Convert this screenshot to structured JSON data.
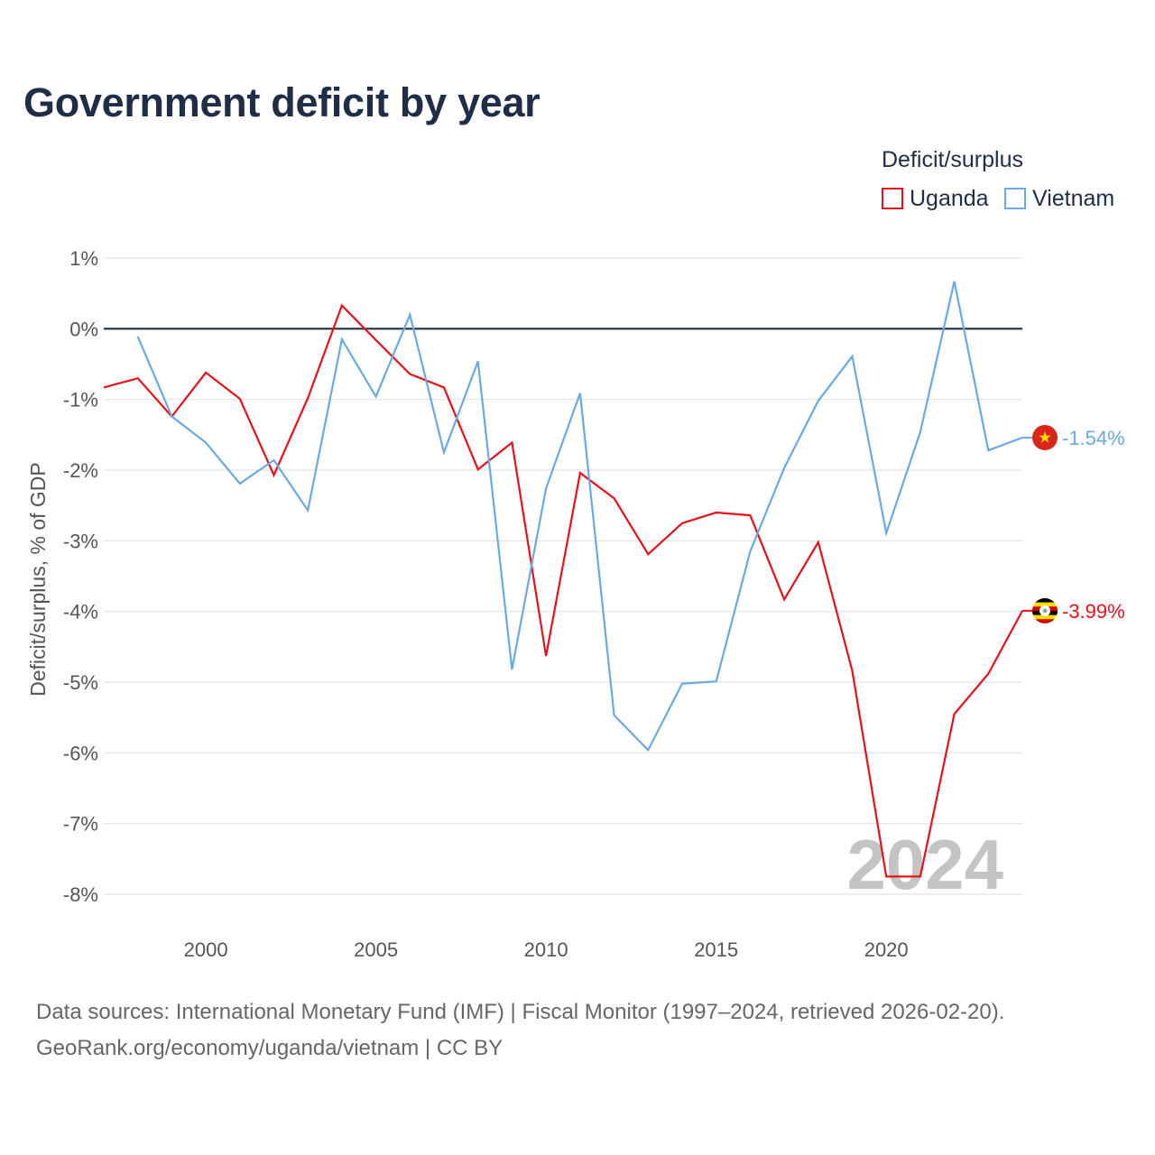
{
  "title": "Government deficit by year",
  "legend": {
    "title": "Deficit/surplus",
    "items": [
      {
        "label": "Uganda",
        "color": "#e8101a"
      },
      {
        "label": "Vietnam",
        "color": "#6aa9e3"
      }
    ]
  },
  "chart_data": {
    "type": "line",
    "title": "Government deficit by year",
    "ylabel": "Deficit/surplus, % of GDP",
    "xlabel": "",
    "xlim": [
      1997,
      2024
    ],
    "ylim": [
      -8,
      1
    ],
    "x_ticks": [
      2000,
      2005,
      2010,
      2015,
      2020
    ],
    "x_tick_labels": [
      "2000",
      "2005",
      "2010",
      "2015",
      "2020"
    ],
    "y_ticks": [
      1,
      0,
      -1,
      -2,
      -3,
      -4,
      -5,
      -6,
      -7,
      -8
    ],
    "y_tick_labels": [
      "1%",
      "0%",
      "-1%",
      "-2%",
      "-3%",
      "-4%",
      "-5%",
      "-6%",
      "-7%",
      "-8%"
    ],
    "grid": true,
    "zero_line": true,
    "watermark_year": "2024",
    "series": [
      {
        "name": "Uganda",
        "color": "#e8101a",
        "end_label": "-3.99%",
        "flag": "uganda-flag-icon",
        "x": [
          1997,
          1998,
          1999,
          2000,
          2001,
          2002,
          2003,
          2004,
          2005,
          2006,
          2007,
          2008,
          2009,
          2010,
          2011,
          2012,
          2013,
          2014,
          2015,
          2016,
          2017,
          2018,
          2019,
          2020,
          2021,
          2022,
          2023,
          2024
        ],
        "values": [
          -0.83,
          -0.7,
          -1.24,
          -0.62,
          -0.99,
          -2.07,
          -0.98,
          0.33,
          -0.16,
          -0.64,
          -0.83,
          -1.99,
          -1.61,
          -4.63,
          -2.04,
          -2.4,
          -3.19,
          -2.75,
          -2.6,
          -2.64,
          -3.83,
          -3.02,
          -4.84,
          -7.75,
          -7.75,
          -5.45,
          -4.88,
          -3.99
        ]
      },
      {
        "name": "Vietnam",
        "color": "#6aa9e3",
        "end_label": "-1.54%",
        "flag": "vietnam-flag-icon",
        "x": [
          1998,
          1999,
          2000,
          2001,
          2002,
          2003,
          2004,
          2005,
          2006,
          2007,
          2008,
          2009,
          2010,
          2011,
          2012,
          2013,
          2014,
          2015,
          2016,
          2017,
          2018,
          2019,
          2020,
          2021,
          2022,
          2023,
          2024
        ],
        "values": [
          -0.11,
          -1.24,
          -1.61,
          -2.19,
          -1.86,
          -2.57,
          -0.15,
          -0.96,
          0.2,
          -1.75,
          -0.46,
          -4.82,
          -2.26,
          -0.91,
          -5.47,
          -5.96,
          -5.02,
          -4.99,
          -3.15,
          -1.97,
          -1.02,
          -0.39,
          -2.89,
          -1.46,
          0.67,
          -1.72,
          -1.54
        ]
      }
    ]
  },
  "source": {
    "line1": "Data sources: International Monetary Fund (IMF) | Fiscal Monitor (1997–2024, retrieved 2026-02-20).",
    "line2": "GeoRank.org/economy/uganda/vietnam | CC BY"
  }
}
